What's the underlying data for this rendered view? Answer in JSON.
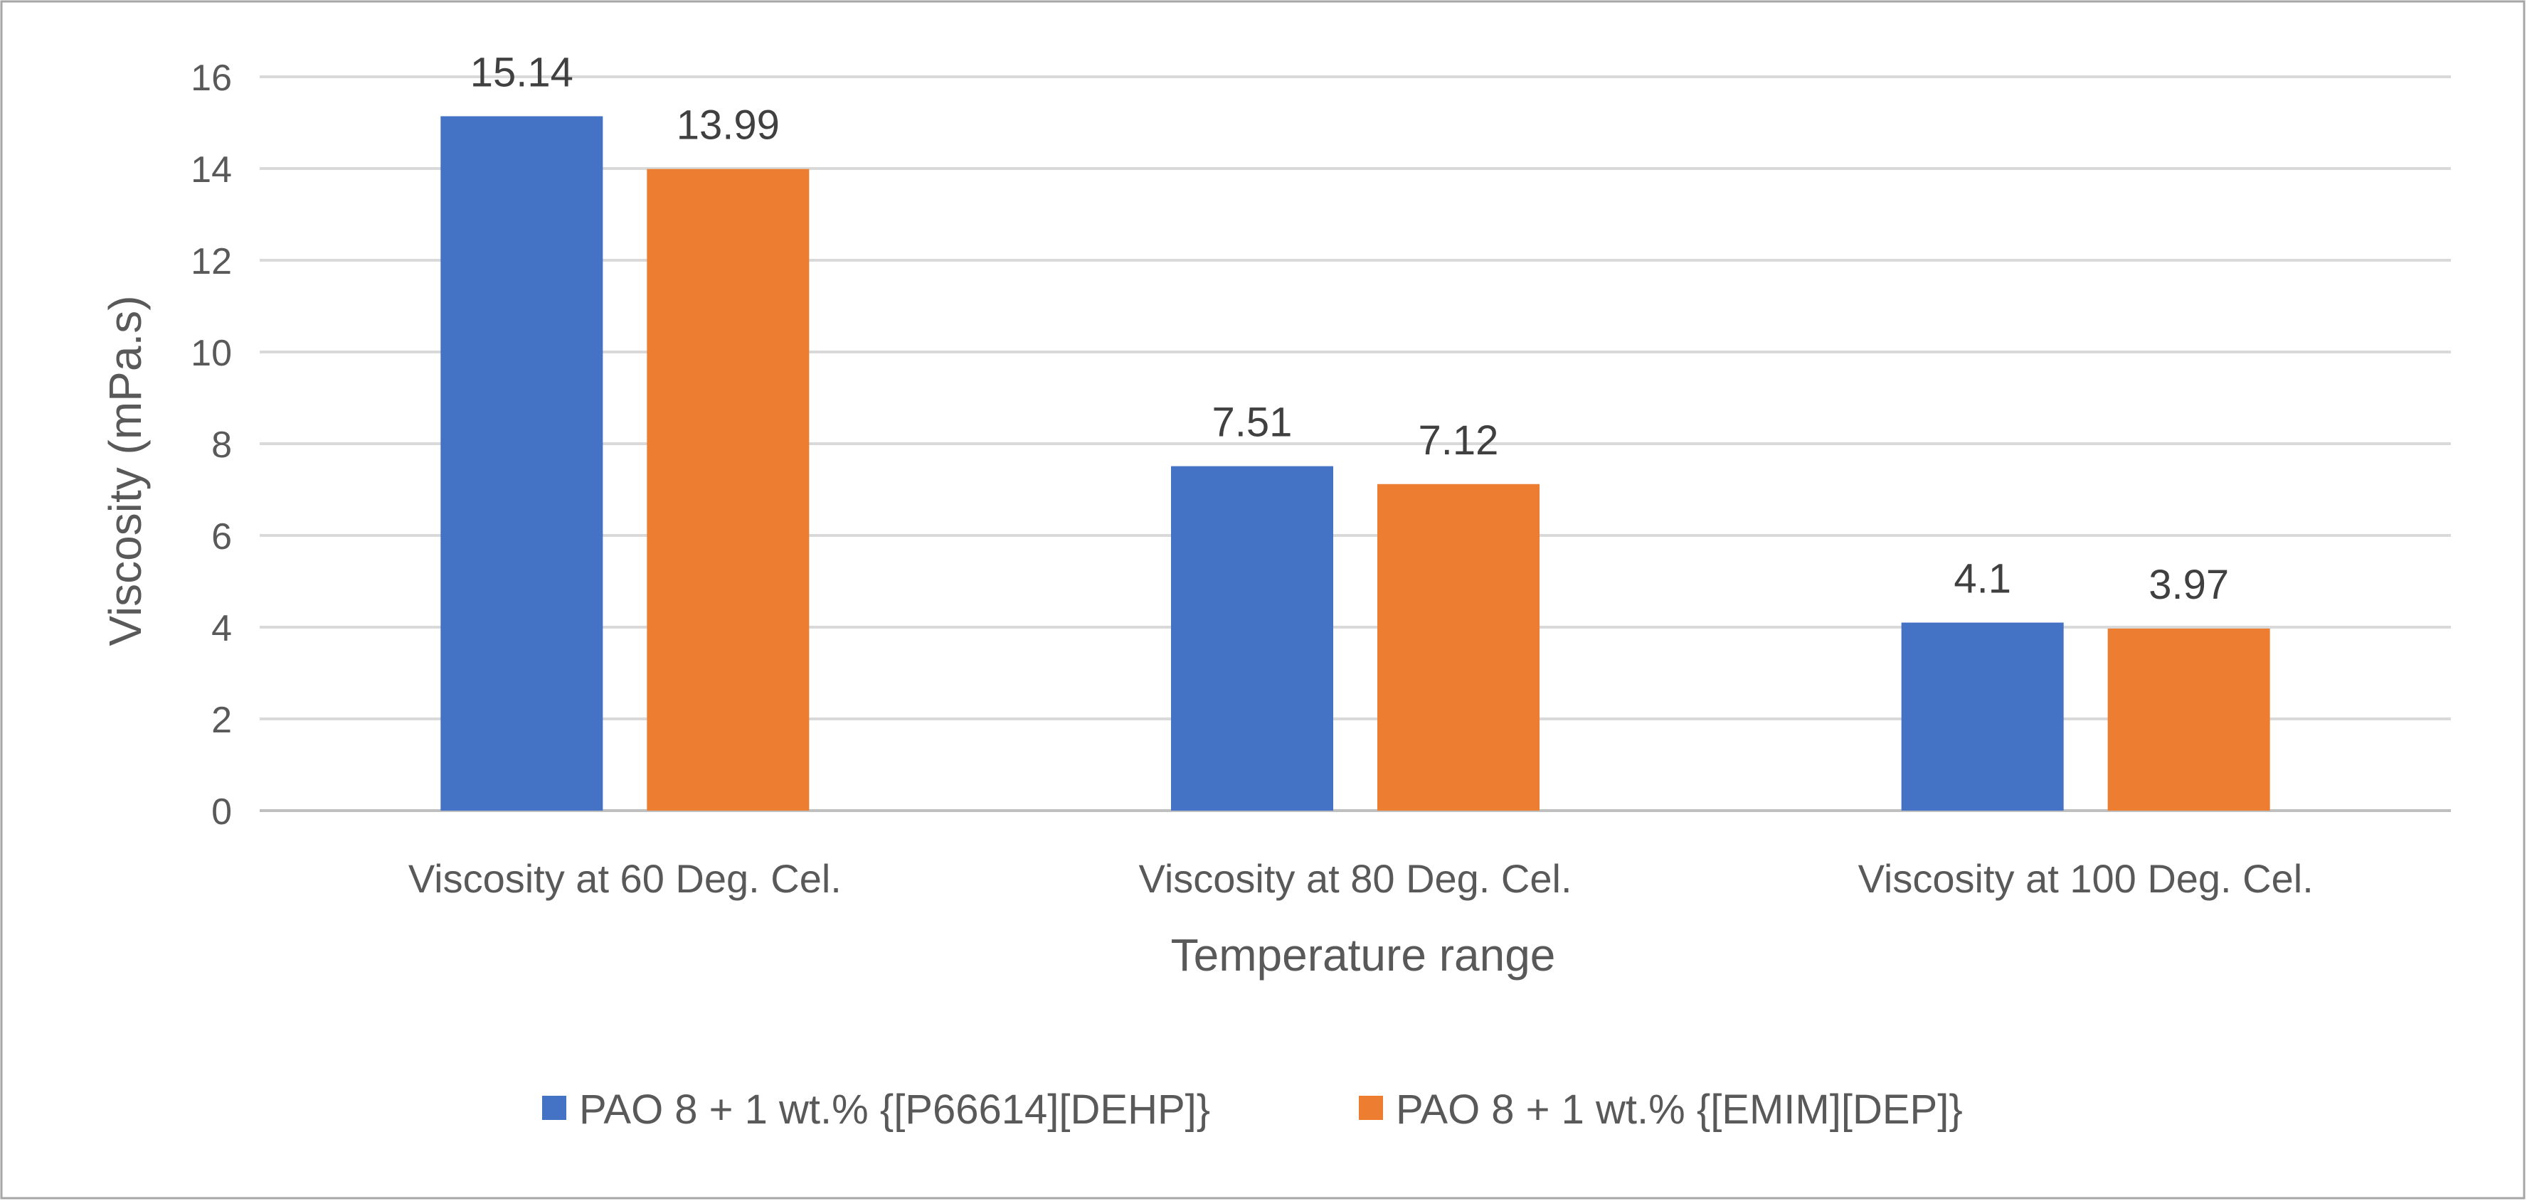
{
  "chart_data": {
    "type": "bar",
    "title": "",
    "xlabel": "Temperature range",
    "ylabel": "Viscosity (mPa.s)",
    "ylim": [
      0,
      16
    ],
    "yticks": [
      0,
      2,
      4,
      6,
      8,
      10,
      12,
      14,
      16
    ],
    "grid": true,
    "legend_position": "bottom",
    "categories": [
      "Viscosity at 60 Deg. Cel.",
      "Viscosity at 80 Deg. Cel.",
      "Viscosity at 100 Deg. Cel."
    ],
    "series": [
      {
        "name": "PAO 8 + 1 wt.% {[P66614][DEHP]}",
        "color": "#4472C4",
        "values": [
          15.14,
          7.51,
          4.1
        ],
        "labels": [
          "15.14",
          "7.51",
          "4.1"
        ]
      },
      {
        "name": "PAO 8 + 1 wt.% {[EMIM][DEP]}",
        "color": "#ED7D31",
        "values": [
          13.99,
          7.12,
          3.97
        ],
        "labels": [
          "13.99",
          "7.12",
          "3.97"
        ]
      }
    ]
  },
  "colors": {
    "gridline": "#D9D9D9",
    "axis_line": "#BFBFBF",
    "frame_border": "#A6A6A6",
    "background": "#FFFFFF"
  }
}
